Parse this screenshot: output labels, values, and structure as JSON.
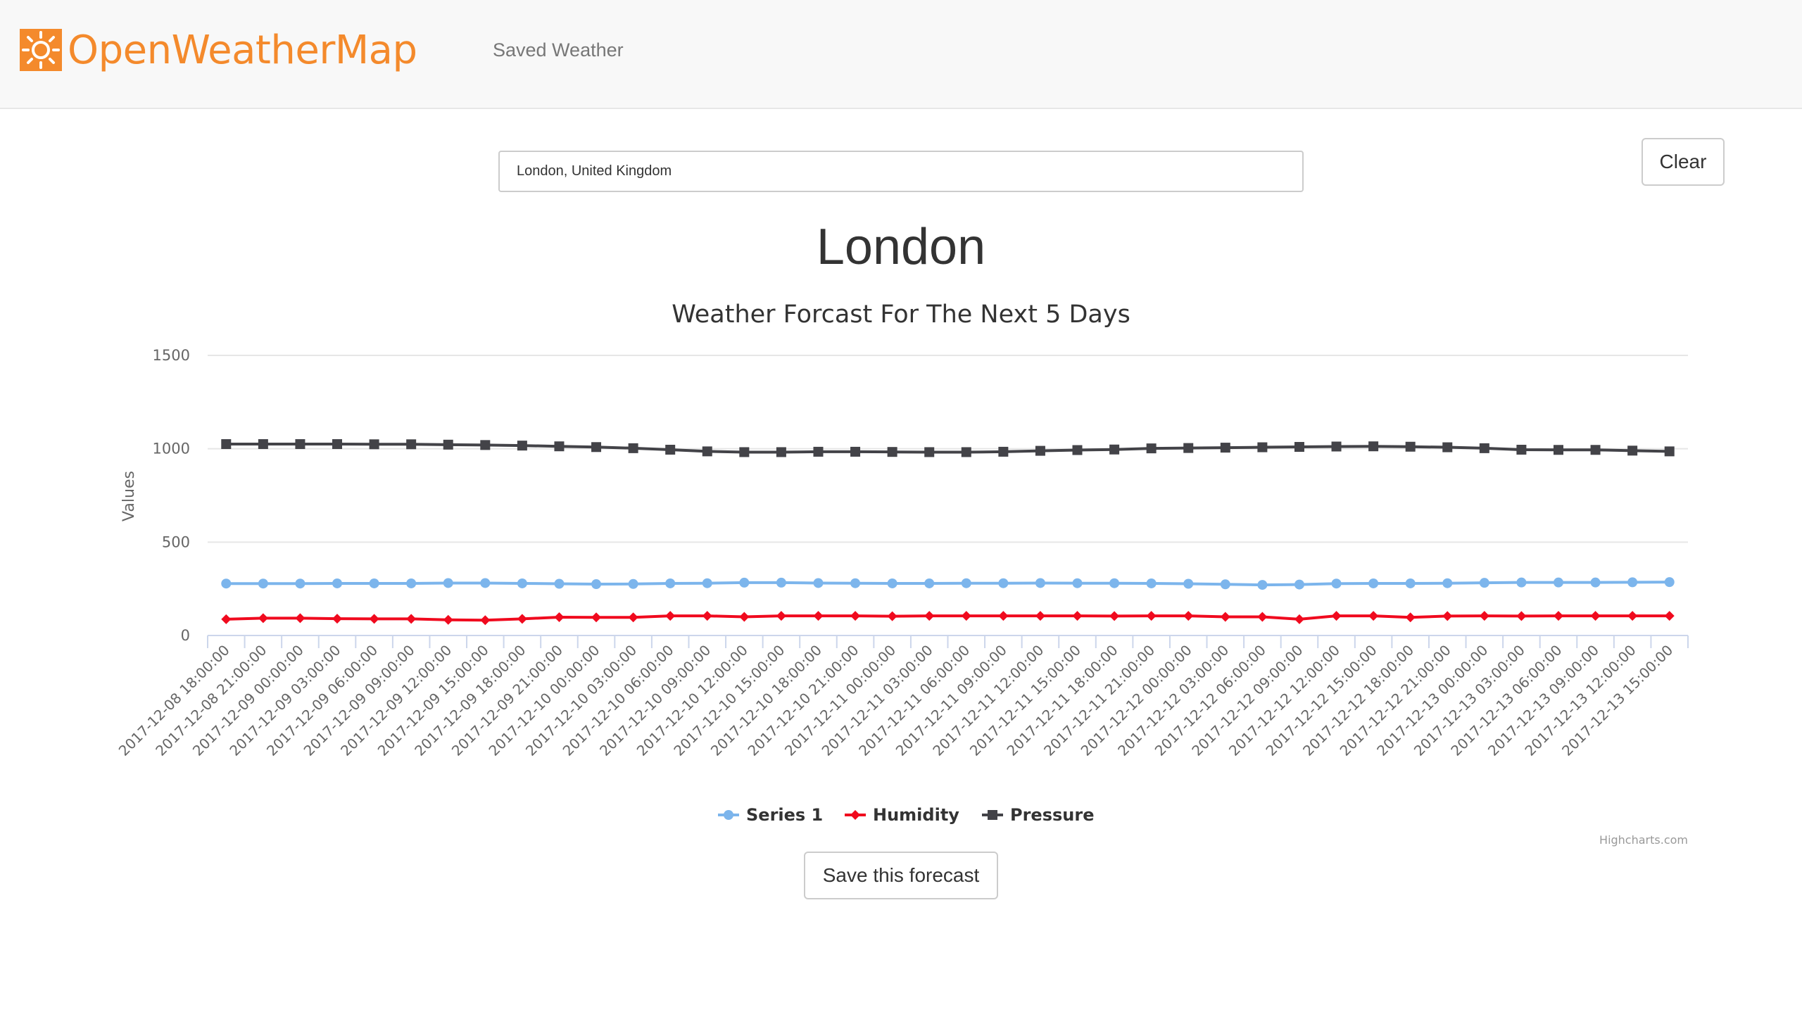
{
  "header": {
    "brand": "OpenWeatherMap",
    "nav_link": "Saved Weather"
  },
  "search": {
    "value": "London, United Kingdom",
    "clear_label": "Clear"
  },
  "city_title": "London",
  "save_label": "Save this forecast",
  "credits": "Highcharts.com",
  "colors": {
    "brand": "#f48a2c",
    "series1": "#7cb5ec",
    "humidity": "#f00a1e",
    "pressure": "#434348"
  },
  "chart_data": {
    "type": "line",
    "title": "Weather Forcast For The Next 5 Days",
    "ylabel": "Values",
    "ylim": [
      0,
      1500
    ],
    "yticks": [
      0,
      500,
      1000,
      1500
    ],
    "grid": true,
    "legend_position": "bottom",
    "x": [
      "2017-12-08 18:00:00",
      "2017-12-08 21:00:00",
      "2017-12-09 00:00:00",
      "2017-12-09 03:00:00",
      "2017-12-09 06:00:00",
      "2017-12-09 09:00:00",
      "2017-12-09 12:00:00",
      "2017-12-09 15:00:00",
      "2017-12-09 18:00:00",
      "2017-12-09 21:00:00",
      "2017-12-10 00:00:00",
      "2017-12-10 03:00:00",
      "2017-12-10 06:00:00",
      "2017-12-10 09:00:00",
      "2017-12-10 12:00:00",
      "2017-12-10 15:00:00",
      "2017-12-10 18:00:00",
      "2017-12-10 21:00:00",
      "2017-12-11 00:00:00",
      "2017-12-11 03:00:00",
      "2017-12-11 06:00:00",
      "2017-12-11 09:00:00",
      "2017-12-11 12:00:00",
      "2017-12-11 15:00:00",
      "2017-12-11 18:00:00",
      "2017-12-11 21:00:00",
      "2017-12-12 00:00:00",
      "2017-12-12 03:00:00",
      "2017-12-12 06:00:00",
      "2017-12-12 09:00:00",
      "2017-12-12 12:00:00",
      "2017-12-12 15:00:00",
      "2017-12-12 18:00:00",
      "2017-12-12 21:00:00",
      "2017-12-13 00:00:00",
      "2017-12-13 03:00:00",
      "2017-12-13 06:00:00",
      "2017-12-13 09:00:00",
      "2017-12-13 12:00:00",
      "2017-12-13 15:00:00"
    ],
    "series": [
      {
        "name": "Series 1",
        "marker": "circle",
        "values": [
          278,
          278,
          278,
          279,
          279,
          279,
          281,
          281,
          279,
          277,
          275,
          276,
          279,
          280,
          283,
          283,
          281,
          280,
          279,
          279,
          280,
          280,
          281,
          280,
          280,
          279,
          277,
          274,
          271,
          273,
          278,
          279,
          279,
          280,
          282,
          284,
          284,
          284,
          285,
          286
        ]
      },
      {
        "name": "Humidity",
        "marker": "diamond",
        "values": [
          87,
          93,
          93,
          90,
          89,
          89,
          84,
          82,
          89,
          98,
          97,
          97,
          105,
          105,
          100,
          105,
          105,
          105,
          103,
          105,
          105,
          105,
          105,
          105,
          104,
          105,
          105,
          100,
          100,
          87,
          105,
          105,
          97,
          104,
          105,
          104,
          105,
          105,
          105,
          105
        ]
      },
      {
        "name": "Pressure",
        "marker": "square",
        "values": [
          1025,
          1025,
          1025,
          1025,
          1024,
          1024,
          1022,
          1020,
          1017,
          1013,
          1009,
          1003,
          995,
          986,
          982,
          982,
          984,
          984,
          983,
          982,
          982,
          984,
          989,
          993,
          996,
          1002,
          1004,
          1006,
          1008,
          1010,
          1012,
          1013,
          1011,
          1008,
          1003,
          995,
          994,
          994,
          990,
          986
        ]
      }
    ]
  }
}
